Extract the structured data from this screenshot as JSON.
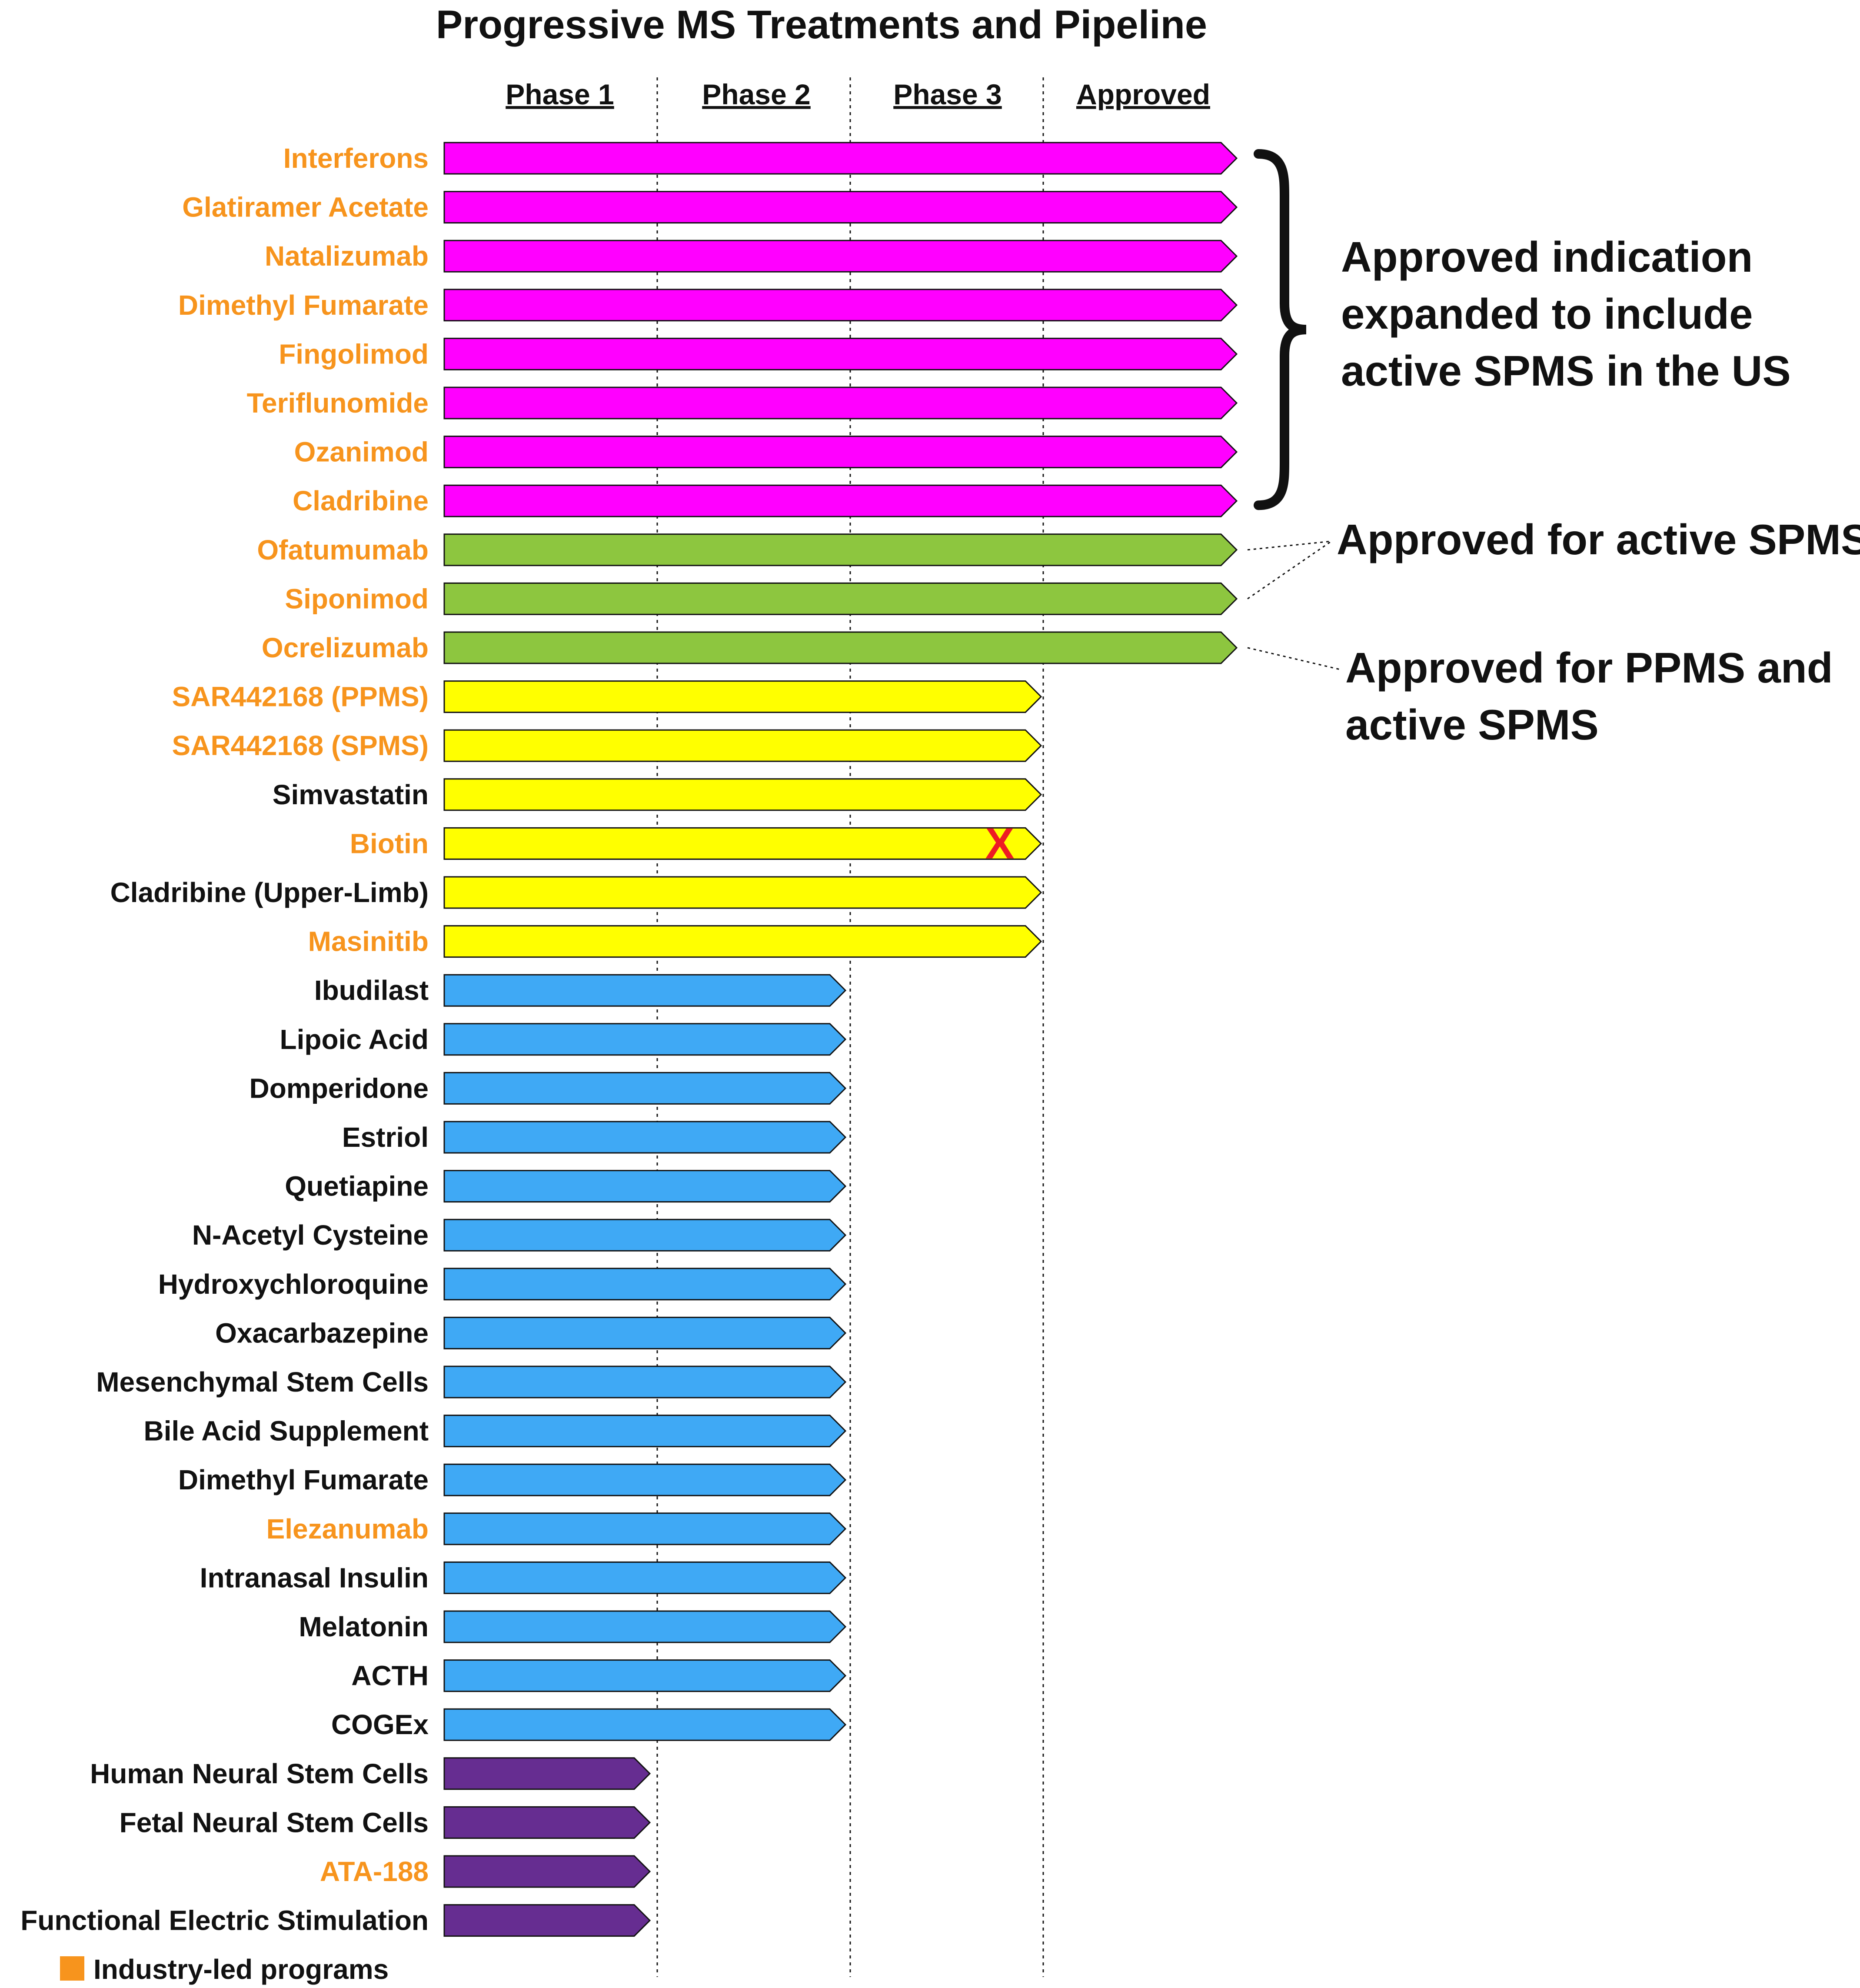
{
  "title": "Progressive MS Treatments and Pipeline",
  "colors": {
    "industry_label": "#F7941D",
    "academic_label": "#111111",
    "Approved (RMS)": "#FF00FF",
    "Approved (SPMS/PPMS)": "#8DC63F",
    "Phase 3": "#FFFF00",
    "Phase 2": "#3FA9F5",
    "Phase 1": "#662D91",
    "discontinued_mark": "#ED1C24"
  },
  "chart_data": {
    "type": "bar",
    "orientation": "horizontal",
    "phases": [
      "Phase 1",
      "Phase 2",
      "Phase 3",
      "Approved"
    ],
    "items": [
      {
        "name": "Interferons",
        "stage": "Approved",
        "industry": true,
        "group": "Approved (RMS)"
      },
      {
        "name": "Glatiramer Acetate",
        "stage": "Approved",
        "industry": true,
        "group": "Approved (RMS)"
      },
      {
        "name": "Natalizumab",
        "stage": "Approved",
        "industry": true,
        "group": "Approved (RMS)"
      },
      {
        "name": "Dimethyl Fumarate",
        "stage": "Approved",
        "industry": true,
        "group": "Approved (RMS)"
      },
      {
        "name": "Fingolimod",
        "stage": "Approved",
        "industry": true,
        "group": "Approved (RMS)"
      },
      {
        "name": "Teriflunomide",
        "stage": "Approved",
        "industry": true,
        "group": "Approved (RMS)"
      },
      {
        "name": "Ozanimod",
        "stage": "Approved",
        "industry": true,
        "group": "Approved (RMS)"
      },
      {
        "name": "Cladribine",
        "stage": "Approved",
        "industry": true,
        "group": "Approved (RMS)"
      },
      {
        "name": "Ofatumumab",
        "stage": "Approved",
        "industry": true,
        "group": "Approved (SPMS/PPMS)"
      },
      {
        "name": "Siponimod",
        "stage": "Approved",
        "industry": true,
        "group": "Approved (SPMS/PPMS)"
      },
      {
        "name": "Ocrelizumab",
        "stage": "Approved",
        "industry": true,
        "group": "Approved (SPMS/PPMS)"
      },
      {
        "name": "SAR442168 (PPMS)",
        "stage": "Phase 3",
        "industry": true,
        "group": "Phase 3"
      },
      {
        "name": "SAR442168 (SPMS)",
        "stage": "Phase 3",
        "industry": true,
        "group": "Phase 3"
      },
      {
        "name": "Simvastatin",
        "stage": "Phase 3",
        "industry": false,
        "group": "Phase 3"
      },
      {
        "name": "Biotin",
        "stage": "Phase 3",
        "industry": true,
        "group": "Phase 3",
        "discontinued": true
      },
      {
        "name": "Cladribine (Upper-Limb)",
        "stage": "Phase 3",
        "industry": false,
        "group": "Phase 3"
      },
      {
        "name": "Masinitib",
        "stage": "Phase 3",
        "industry": true,
        "group": "Phase 3"
      },
      {
        "name": "Ibudilast",
        "stage": "Phase 2",
        "industry": false,
        "group": "Phase 2"
      },
      {
        "name": "Lipoic Acid",
        "stage": "Phase 2",
        "industry": false,
        "group": "Phase 2"
      },
      {
        "name": "Domperidone",
        "stage": "Phase 2",
        "industry": false,
        "group": "Phase 2"
      },
      {
        "name": "Estriol",
        "stage": "Phase 2",
        "industry": false,
        "group": "Phase 2"
      },
      {
        "name": "Quetiapine",
        "stage": "Phase 2",
        "industry": false,
        "group": "Phase 2"
      },
      {
        "name": "N-Acetyl Cysteine",
        "stage": "Phase 2",
        "industry": false,
        "group": "Phase 2"
      },
      {
        "name": "Hydroxychloroquine",
        "stage": "Phase 2",
        "industry": false,
        "group": "Phase 2"
      },
      {
        "name": "Oxacarbazepine",
        "stage": "Phase 2",
        "industry": false,
        "group": "Phase 2"
      },
      {
        "name": "Mesenchymal Stem Cells",
        "stage": "Phase 2",
        "industry": false,
        "group": "Phase 2"
      },
      {
        "name": "Bile Acid Supplement",
        "stage": "Phase 2",
        "industry": false,
        "group": "Phase 2"
      },
      {
        "name": "Dimethyl Fumarate",
        "stage": "Phase 2",
        "industry": false,
        "group": "Phase 2"
      },
      {
        "name": "Elezanumab",
        "stage": "Phase 2",
        "industry": true,
        "group": "Phase 2"
      },
      {
        "name": "Intranasal Insulin",
        "stage": "Phase 2",
        "industry": false,
        "group": "Phase 2"
      },
      {
        "name": "Melatonin",
        "stage": "Phase 2",
        "industry": false,
        "group": "Phase 2"
      },
      {
        "name": "ACTH",
        "stage": "Phase 2",
        "industry": false,
        "group": "Phase 2"
      },
      {
        "name": "COGEx",
        "stage": "Phase 2",
        "industry": false,
        "group": "Phase 2"
      },
      {
        "name": "Human Neural Stem Cells",
        "stage": "Phase 1",
        "industry": false,
        "group": "Phase 1"
      },
      {
        "name": "Fetal Neural Stem Cells",
        "stage": "Phase 1",
        "industry": false,
        "group": "Phase 1"
      },
      {
        "name": "ATA-188",
        "stage": "Phase 1",
        "industry": true,
        "group": "Phase 1"
      },
      {
        "name": "Functional Electric Stimulation",
        "stage": "Phase 1",
        "industry": false,
        "group": "Phase 1"
      }
    ],
    "annotations": [
      {
        "text_lines": [
          "Approved indication",
          "expanded to include",
          "active SPMS in the US"
        ],
        "applies_to": [
          "Interferons",
          "Glatiramer Acetate",
          "Natalizumab",
          "Dimethyl Fumarate",
          "Fingolimod",
          "Teriflunomide",
          "Ozanimod",
          "Cladribine"
        ],
        "connector": "brace"
      },
      {
        "text_lines": [
          "Approved for active SPMS"
        ],
        "applies_to": [
          "Ofatumumab",
          "Siponimod"
        ],
        "connector": "dotted"
      },
      {
        "text_lines": [
          "Approved for PPMS and",
          "active SPMS"
        ],
        "applies_to": [
          "Ocrelizumab"
        ],
        "connector": "dotted"
      }
    ],
    "discontinued_marker": "X",
    "legend": [
      {
        "label": "Industry-led programs",
        "color": "#F7941D"
      }
    ]
  }
}
